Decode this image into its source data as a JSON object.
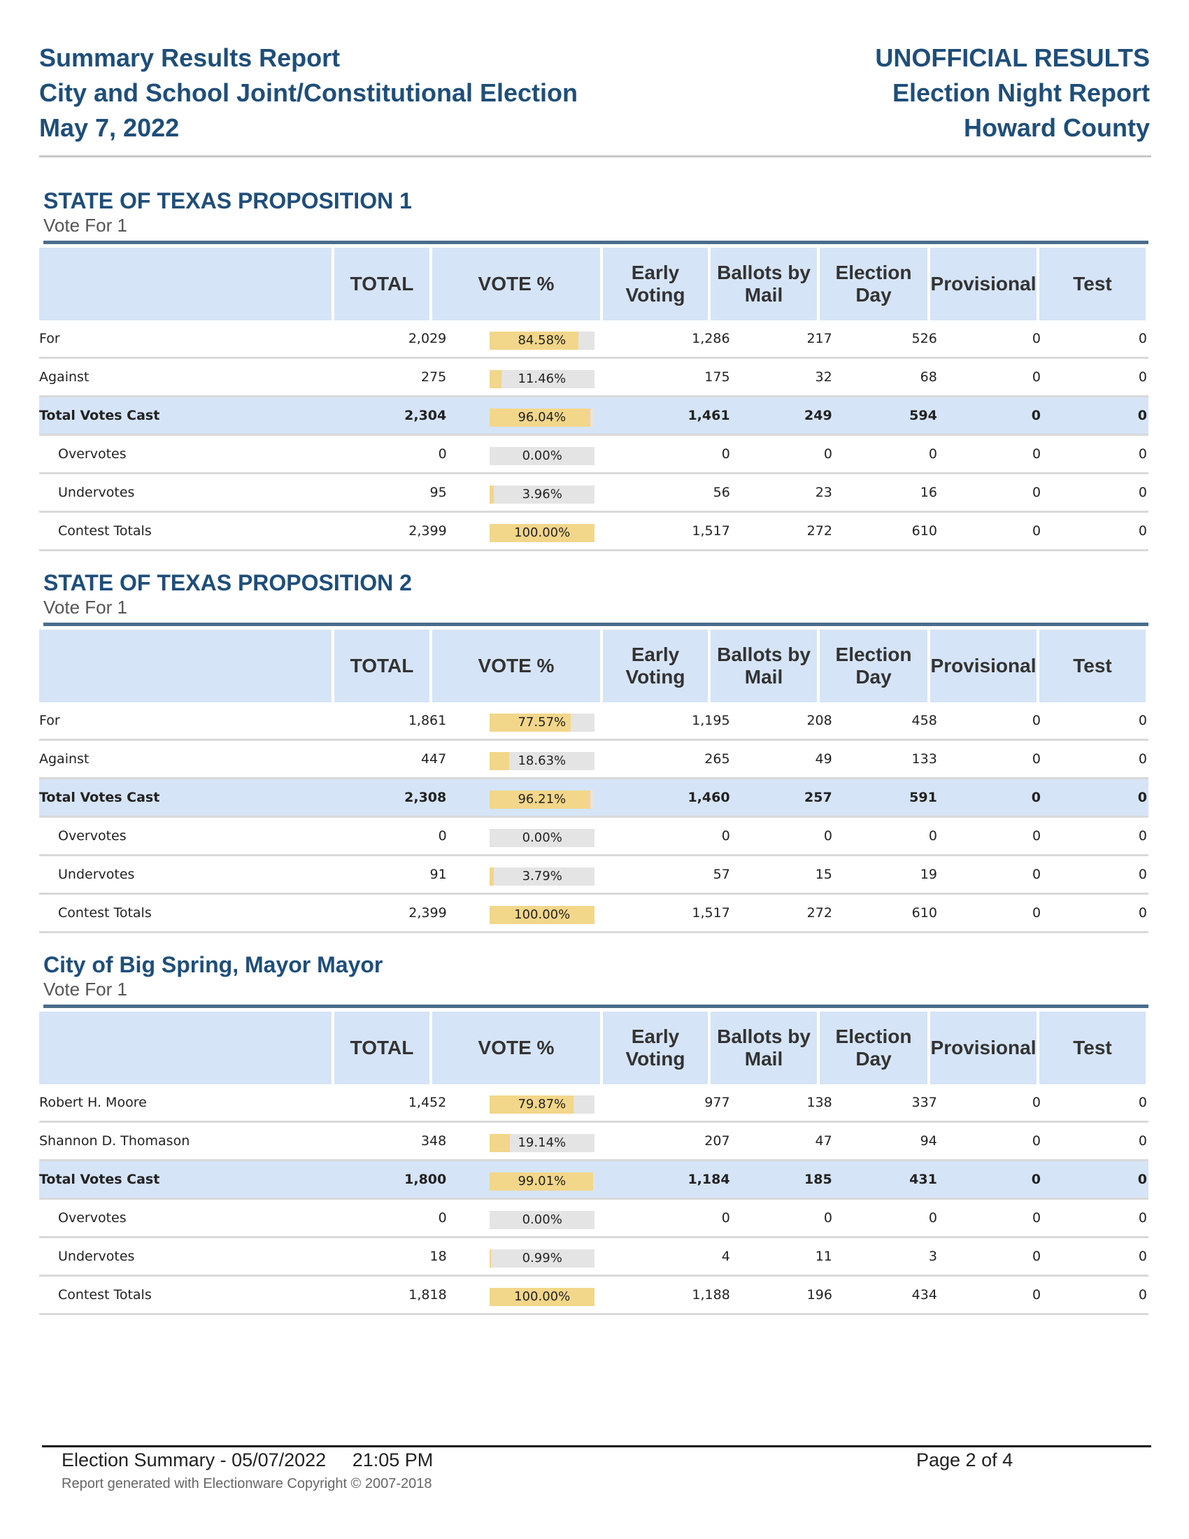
{
  "header": {
    "left": [
      "Summary Results Report",
      "City and School Joint/Constitutional Election",
      "May 7, 2022"
    ],
    "right": [
      "UNOFFICIAL RESULTS",
      "Election Night  Report",
      "Howard County"
    ]
  },
  "columns": [
    "",
    "TOTAL",
    "VOTE %",
    "Early Voting",
    "Ballots by Mail",
    "Election Day",
    "Provisional",
    "Test"
  ],
  "contests": [
    {
      "title": "STATE OF TEXAS PROPOSITION 1",
      "vote_for": "Vote For 1",
      "rows": [
        {
          "label": "For",
          "total": "2,029",
          "pct": "84.58%",
          "pct_value": 84.58,
          "ev": "1,286",
          "bm": "217",
          "ed": "526",
          "pv": "0",
          "ts": "0"
        },
        {
          "label": "Against",
          "total": "275",
          "pct": "11.46%",
          "pct_value": 11.46,
          "ev": "175",
          "bm": "32",
          "ed": "68",
          "pv": "0",
          "ts": "0"
        },
        {
          "label": "Total Votes Cast",
          "total": "2,304",
          "pct": "96.04%",
          "pct_value": 96.04,
          "ev": "1,461",
          "bm": "249",
          "ed": "594",
          "pv": "0",
          "ts": "0"
        },
        {
          "label": "Overvotes",
          "total": "0",
          "pct": "0.00%",
          "pct_value": 0,
          "ev": "0",
          "bm": "0",
          "ed": "0",
          "pv": "0",
          "ts": "0"
        },
        {
          "label": "Undervotes",
          "total": "95",
          "pct": "3.96%",
          "pct_value": 3.96,
          "ev": "56",
          "bm": "23",
          "ed": "16",
          "pv": "0",
          "ts": "0"
        },
        {
          "label": "Contest Totals",
          "total": "2,399",
          "pct": "100.00%",
          "pct_value": 100,
          "ev": "1,517",
          "bm": "272",
          "ed": "610",
          "pv": "0",
          "ts": "0"
        }
      ]
    },
    {
      "title": "STATE OF TEXAS PROPOSITION 2",
      "vote_for": "Vote For 1",
      "rows": [
        {
          "label": "For",
          "total": "1,861",
          "pct": "77.57%",
          "pct_value": 77.57,
          "ev": "1,195",
          "bm": "208",
          "ed": "458",
          "pv": "0",
          "ts": "0"
        },
        {
          "label": "Against",
          "total": "447",
          "pct": "18.63%",
          "pct_value": 18.63,
          "ev": "265",
          "bm": "49",
          "ed": "133",
          "pv": "0",
          "ts": "0"
        },
        {
          "label": "Total Votes Cast",
          "total": "2,308",
          "pct": "96.21%",
          "pct_value": 96.21,
          "ev": "1,460",
          "bm": "257",
          "ed": "591",
          "pv": "0",
          "ts": "0"
        },
        {
          "label": "Overvotes",
          "total": "0",
          "pct": "0.00%",
          "pct_value": 0,
          "ev": "0",
          "bm": "0",
          "ed": "0",
          "pv": "0",
          "ts": "0"
        },
        {
          "label": "Undervotes",
          "total": "91",
          "pct": "3.79%",
          "pct_value": 3.79,
          "ev": "57",
          "bm": "15",
          "ed": "19",
          "pv": "0",
          "ts": "0"
        },
        {
          "label": "Contest Totals",
          "total": "2,399",
          "pct": "100.00%",
          "pct_value": 100,
          "ev": "1,517",
          "bm": "272",
          "ed": "610",
          "pv": "0",
          "ts": "0"
        }
      ]
    },
    {
      "title": "City of Big Spring, Mayor Mayor",
      "vote_for": "Vote For 1",
      "rows": [
        {
          "label": "Robert H. Moore",
          "total": "1,452",
          "pct": "79.87%",
          "pct_value": 79.87,
          "ev": "977",
          "bm": "138",
          "ed": "337",
          "pv": "0",
          "ts": "0"
        },
        {
          "label": "Shannon D. Thomason",
          "total": "348",
          "pct": "19.14%",
          "pct_value": 19.14,
          "ev": "207",
          "bm": "47",
          "ed": "94",
          "pv": "0",
          "ts": "0"
        },
        {
          "label": "Total Votes Cast",
          "total": "1,800",
          "pct": "99.01%",
          "pct_value": 99.01,
          "ev": "1,184",
          "bm": "185",
          "ed": "431",
          "pv": "0",
          "ts": "0"
        },
        {
          "label": "Overvotes",
          "total": "0",
          "pct": "0.00%",
          "pct_value": 0,
          "ev": "0",
          "bm": "0",
          "ed": "0",
          "pv": "0",
          "ts": "0"
        },
        {
          "label": "Undervotes",
          "total": "18",
          "pct": "0.99%",
          "pct_value": 0.99,
          "ev": "4",
          "bm": "11",
          "ed": "3",
          "pv": "0",
          "ts": "0"
        },
        {
          "label": "Contest Totals",
          "total": "1,818",
          "pct": "100.00%",
          "pct_value": 100,
          "ev": "1,188",
          "bm": "196",
          "ed": "434",
          "pv": "0",
          "ts": "0"
        }
      ]
    }
  ],
  "footer": {
    "summary": "Election Summary - 05/07/2022     21:05 PM",
    "page": "Page 2 of 4",
    "copyright": "Report generated with Electionware Copyright © 2007-2018"
  }
}
